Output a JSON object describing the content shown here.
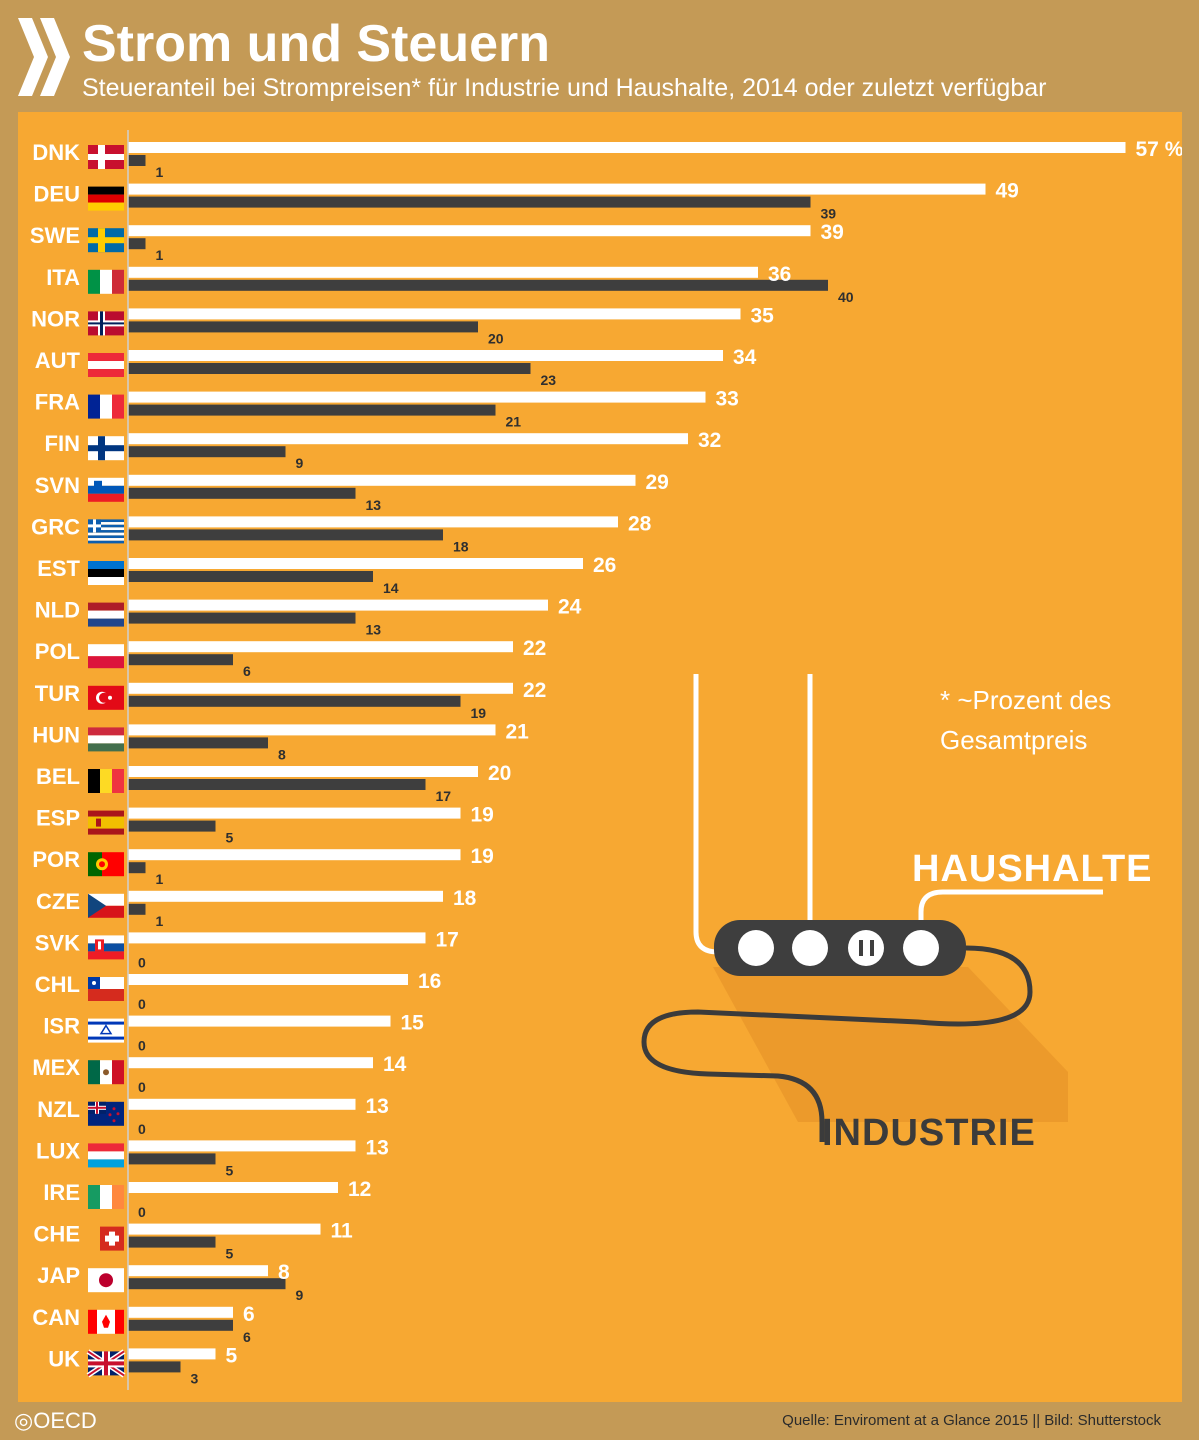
{
  "header": {
    "title": "Strom und Steuern",
    "subtitle": "Steueranteil bei Strompreisen* für Industrie und Haushalte, 2014 oder zuletzt verfügbar"
  },
  "footnote": {
    "line1": "* ~Prozent des",
    "line2": "Gesamtpreis"
  },
  "illustration": {
    "haushalte_label": "HAUSHALTE",
    "industrie_label": "INDUSTRIE"
  },
  "footer": {
    "logo_text": "OECD",
    "source": "Quelle: Enviroment at a Glance 2015 || Bild: Shutterstock"
  },
  "colors": {
    "background": "#c49a56",
    "panel": "#f7a832",
    "haushalte_bar": "#ffffff",
    "industrie_bar": "#3e3e3e"
  },
  "chart_data": {
    "type": "bar",
    "orientation": "horizontal",
    "unit_suffix": " %",
    "categories": [
      "DNK",
      "DEU",
      "SWE",
      "ITA",
      "NOR",
      "AUT",
      "FRA",
      "FIN",
      "SVN",
      "GRC",
      "EST",
      "NLD",
      "POL",
      "TUR",
      "HUN",
      "BEL",
      "ESP",
      "POR",
      "CZE",
      "SVK",
      "CHL",
      "ISR",
      "MEX",
      "NZL",
      "LUX",
      "IRE",
      "CHE",
      "JAP",
      "CAN",
      "UK"
    ],
    "series": [
      {
        "name": "HAUSHALTE",
        "values": [
          57,
          49,
          39,
          36,
          35,
          34,
          33,
          32,
          29,
          28,
          26,
          24,
          22,
          22,
          21,
          20,
          19,
          19,
          18,
          17,
          16,
          15,
          14,
          13,
          13,
          12,
          11,
          8,
          6,
          5
        ]
      },
      {
        "name": "INDUSTRIE",
        "values": [
          1,
          39,
          1,
          40,
          20,
          23,
          21,
          9,
          13,
          18,
          14,
          13,
          6,
          19,
          8,
          17,
          5,
          1,
          1,
          0,
          0,
          0,
          0,
          0,
          5,
          0,
          5,
          9,
          6,
          3
        ]
      }
    ],
    "xlim": [
      0,
      57
    ],
    "grid": false,
    "legend": "illustration-labels"
  }
}
